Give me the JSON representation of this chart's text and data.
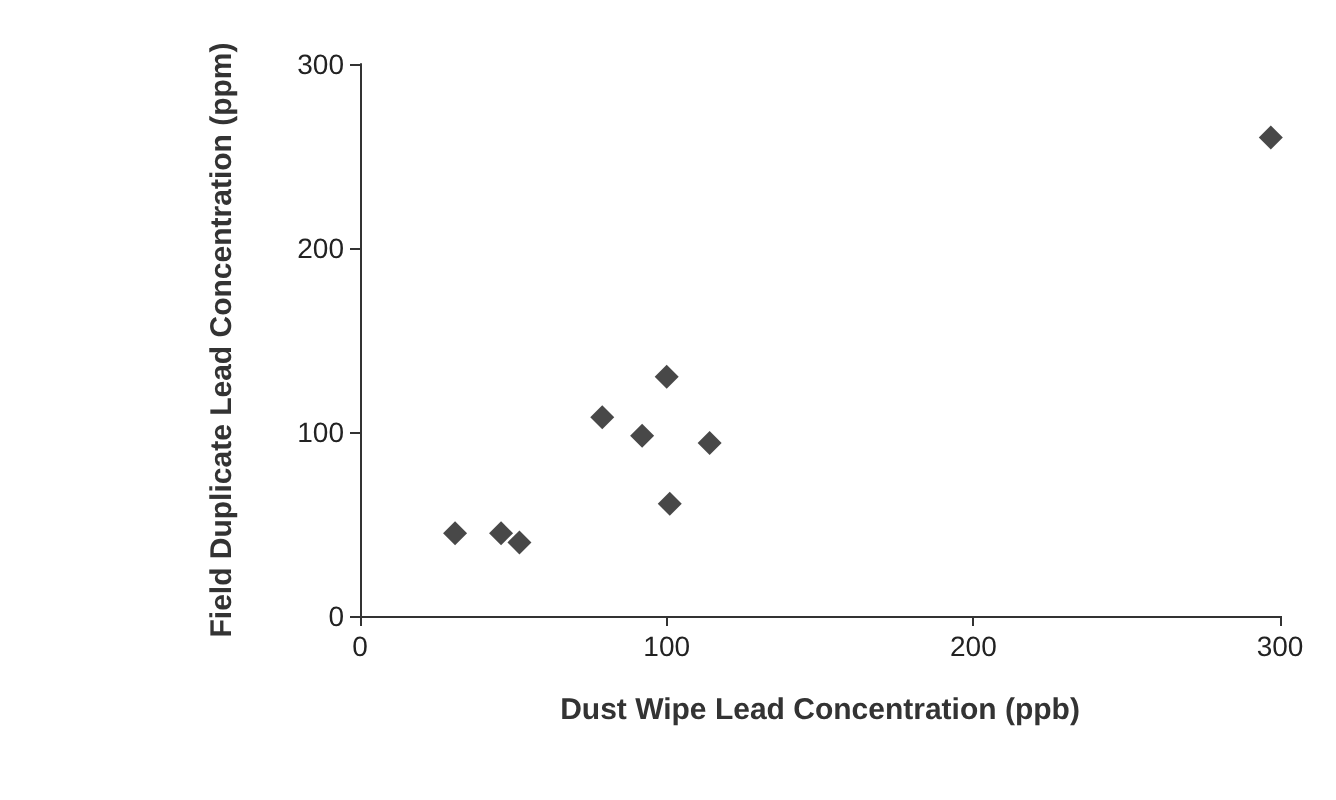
{
  "chart_data": {
    "type": "scatter",
    "xlabel": "Dust Wipe Lead Concentration (ppb)",
    "ylabel": "Field Duplicate Lead Concentration (ppm)",
    "x": [
      31,
      46,
      52,
      79,
      92,
      100,
      114,
      101,
      297
    ],
    "values": [
      45,
      45,
      40,
      108,
      98,
      130,
      94,
      61,
      260
    ],
    "color": "#1a1a1a",
    "marker": "diamond",
    "grid": false,
    "xlim": [
      0,
      300
    ],
    "xticks": [
      0,
      100,
      200,
      300
    ],
    "ylim": [
      0,
      300
    ],
    "yticks": [
      0,
      100,
      200,
      300
    ]
  }
}
